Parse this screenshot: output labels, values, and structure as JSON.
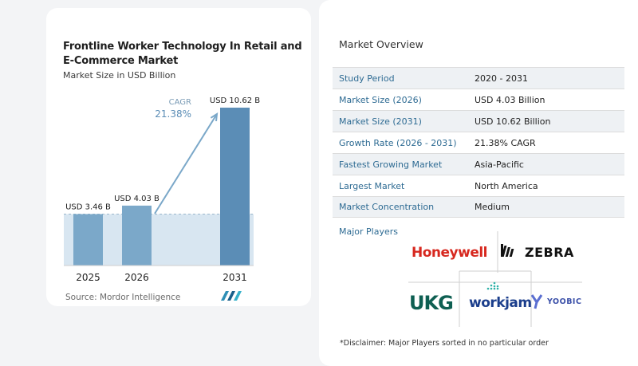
{
  "chart_data": {
    "type": "bar",
    "title": "Frontline Worker Technology In Retail and E-Commerce Market",
    "subtitle": "Market Size in USD Billion",
    "categories": [
      "2025",
      "2026",
      "2031"
    ],
    "values": [
      3.46,
      4.03,
      10.62
    ],
    "data_labels": [
      "USD 3.46 B",
      "USD 4.03 B",
      "USD 10.62 B"
    ],
    "cagr_label": "CAGR",
    "cagr_value": "21.38%",
    "colors": {
      "bar_light": "#7ba8c9",
      "bar_dark": "#5b8db6",
      "highlight": "#d8e6f1",
      "arrow": "#7ba8c9"
    }
  },
  "source": "Source:  Mordor Intelligence",
  "overview": {
    "title": "Market Overview",
    "rows": [
      {
        "label": "Study Period",
        "value": "2020 - 2031"
      },
      {
        "label": "Market Size (2026)",
        "value": "USD 4.03 Billion"
      },
      {
        "label": "Market Size (2031)",
        "value": "USD 10.62 Billion"
      },
      {
        "label": "Growth Rate (2026 - 2031)",
        "value": "21.38% CAGR"
      },
      {
        "label": "Fastest Growing Market",
        "value": "Asia-Pacific"
      },
      {
        "label": "Largest Market",
        "value": "North America"
      },
      {
        "label": "Market Concentration",
        "value": "Medium"
      }
    ]
  },
  "players": {
    "title": "Major Players",
    "logos": [
      "Honeywell",
      "ZEBRA",
      "UKG",
      "workjam",
      "YOOBIC"
    ]
  },
  "disclaimer": "*Disclaimer: Major Players sorted in no particular order"
}
